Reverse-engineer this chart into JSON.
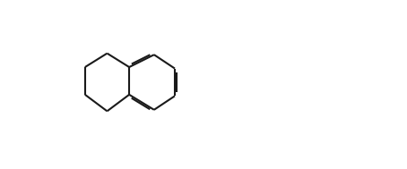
{
  "bg_color": "#ffffff",
  "line_color": "#1a1a1a",
  "line_width": 1.5,
  "fig_width": 4.54,
  "fig_height": 1.89,
  "dpi": 100
}
